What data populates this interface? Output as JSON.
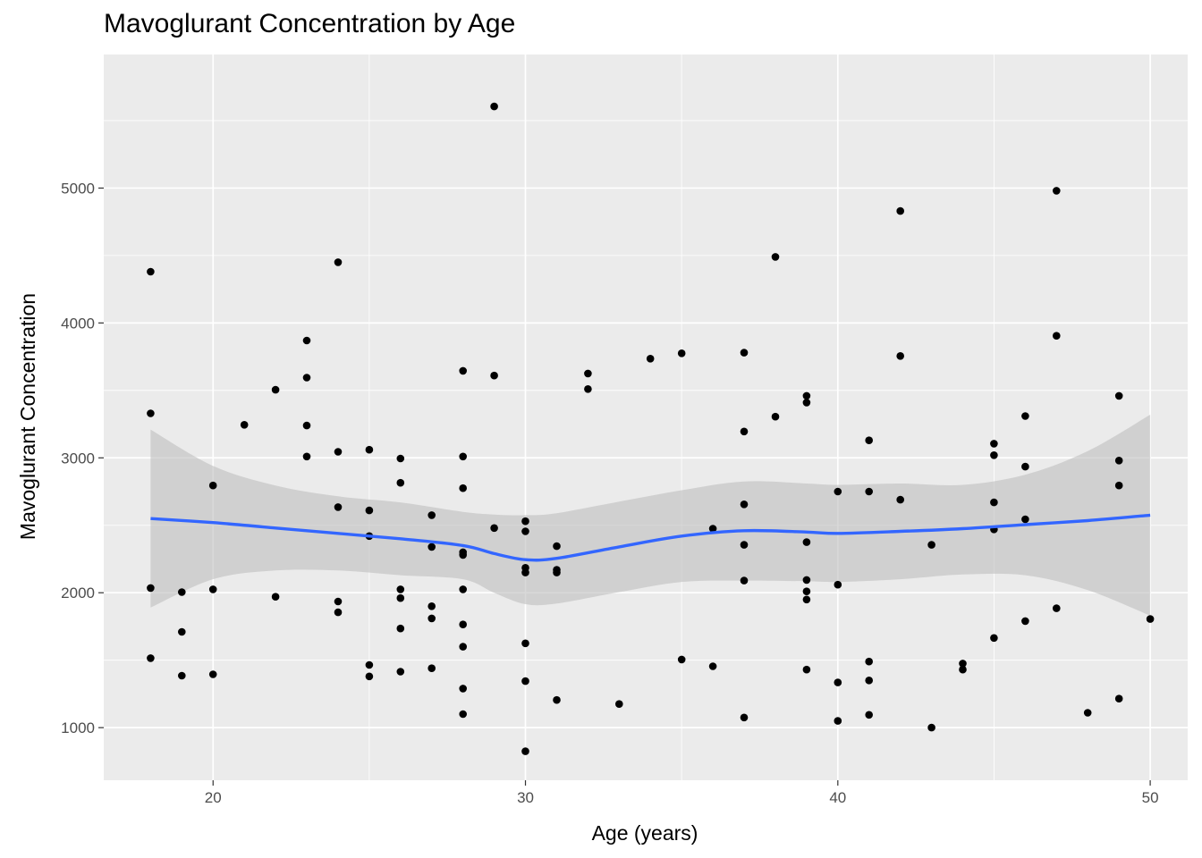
{
  "chart_data": {
    "type": "scatter",
    "title": "Mavoglurant Concentration by Age",
    "xlabel": "Age (years)",
    "ylabel": "Mavoglurant Concentration",
    "xlim": [
      16.5,
      51.2
    ],
    "ylim": [
      610,
      5990
    ],
    "x_ticks": [
      20,
      30,
      40,
      50
    ],
    "x_tick_labels": [
      "20",
      "30",
      "40",
      "50"
    ],
    "y_ticks": [
      1000,
      2000,
      3000,
      4000,
      5000
    ],
    "y_tick_labels": [
      "1000",
      "2000",
      "3000",
      "4000",
      "5000"
    ],
    "grid": true,
    "colors": {
      "panel": "#ebebeb",
      "grid": "#ffffff",
      "points": "#000000",
      "smooth_line": "#3366ff",
      "ribbon": "#bebebe"
    },
    "points": [
      {
        "x": 18,
        "y": 4380
      },
      {
        "x": 18,
        "y": 3330
      },
      {
        "x": 18,
        "y": 2035
      },
      {
        "x": 18,
        "y": 1515
      },
      {
        "x": 19,
        "y": 2005
      },
      {
        "x": 19,
        "y": 1710
      },
      {
        "x": 19,
        "y": 1385
      },
      {
        "x": 20,
        "y": 2795
      },
      {
        "x": 20,
        "y": 2025
      },
      {
        "x": 20,
        "y": 1395
      },
      {
        "x": 21,
        "y": 3245
      },
      {
        "x": 22,
        "y": 3505
      },
      {
        "x": 22,
        "y": 1970
      },
      {
        "x": 23,
        "y": 3870
      },
      {
        "x": 23,
        "y": 3595
      },
      {
        "x": 23,
        "y": 3240
      },
      {
        "x": 23,
        "y": 3010
      },
      {
        "x": 24,
        "y": 4450
      },
      {
        "x": 24,
        "y": 3045
      },
      {
        "x": 24,
        "y": 2635
      },
      {
        "x": 24,
        "y": 1935
      },
      {
        "x": 24,
        "y": 1855
      },
      {
        "x": 25,
        "y": 3060
      },
      {
        "x": 25,
        "y": 2610
      },
      {
        "x": 25,
        "y": 2420
      },
      {
        "x": 25,
        "y": 1465
      },
      {
        "x": 25,
        "y": 1380
      },
      {
        "x": 26,
        "y": 2995
      },
      {
        "x": 26,
        "y": 2815
      },
      {
        "x": 26,
        "y": 2025
      },
      {
        "x": 26,
        "y": 1960
      },
      {
        "x": 26,
        "y": 1735
      },
      {
        "x": 26,
        "y": 1415
      },
      {
        "x": 27,
        "y": 2575
      },
      {
        "x": 27,
        "y": 2340
      },
      {
        "x": 27,
        "y": 1900
      },
      {
        "x": 27,
        "y": 1810
      },
      {
        "x": 27,
        "y": 1440
      },
      {
        "x": 28,
        "y": 3645
      },
      {
        "x": 28,
        "y": 3010
      },
      {
        "x": 28,
        "y": 2775
      },
      {
        "x": 28,
        "y": 2300
      },
      {
        "x": 28,
        "y": 2280
      },
      {
        "x": 28,
        "y": 2025
      },
      {
        "x": 28,
        "y": 1765
      },
      {
        "x": 28,
        "y": 1600
      },
      {
        "x": 28,
        "y": 1290
      },
      {
        "x": 28,
        "y": 1100
      },
      {
        "x": 29,
        "y": 5605
      },
      {
        "x": 29,
        "y": 3610
      },
      {
        "x": 29,
        "y": 2480
      },
      {
        "x": 30,
        "y": 2530
      },
      {
        "x": 30,
        "y": 2455
      },
      {
        "x": 30,
        "y": 2185
      },
      {
        "x": 30,
        "y": 2150
      },
      {
        "x": 30,
        "y": 1625
      },
      {
        "x": 30,
        "y": 1345
      },
      {
        "x": 30,
        "y": 825
      },
      {
        "x": 31,
        "y": 2345
      },
      {
        "x": 31,
        "y": 2170
      },
      {
        "x": 31,
        "y": 2150
      },
      {
        "x": 31,
        "y": 1205
      },
      {
        "x": 32,
        "y": 3625
      },
      {
        "x": 32,
        "y": 3510
      },
      {
        "x": 33,
        "y": 1175
      },
      {
        "x": 34,
        "y": 3735
      },
      {
        "x": 35,
        "y": 3775
      },
      {
        "x": 35,
        "y": 1505
      },
      {
        "x": 36,
        "y": 2475
      },
      {
        "x": 36,
        "y": 1455
      },
      {
        "x": 37,
        "y": 3780
      },
      {
        "x": 37,
        "y": 3195
      },
      {
        "x": 37,
        "y": 2655
      },
      {
        "x": 37,
        "y": 2355
      },
      {
        "x": 37,
        "y": 2090
      },
      {
        "x": 37,
        "y": 1075
      },
      {
        "x": 38,
        "y": 4490
      },
      {
        "x": 38,
        "y": 3305
      },
      {
        "x": 39,
        "y": 3460
      },
      {
        "x": 39,
        "y": 3410
      },
      {
        "x": 39,
        "y": 2375
      },
      {
        "x": 39,
        "y": 2095
      },
      {
        "x": 39,
        "y": 2010
      },
      {
        "x": 39,
        "y": 1950
      },
      {
        "x": 39,
        "y": 1430
      },
      {
        "x": 40,
        "y": 2750
      },
      {
        "x": 40,
        "y": 2060
      },
      {
        "x": 40,
        "y": 1335
      },
      {
        "x": 40,
        "y": 1050
      },
      {
        "x": 41,
        "y": 3130
      },
      {
        "x": 41,
        "y": 2750
      },
      {
        "x": 41,
        "y": 1490
      },
      {
        "x": 41,
        "y": 1350
      },
      {
        "x": 41,
        "y": 1095
      },
      {
        "x": 42,
        "y": 4830
      },
      {
        "x": 42,
        "y": 3755
      },
      {
        "x": 42,
        "y": 2690
      },
      {
        "x": 43,
        "y": 2355
      },
      {
        "x": 43,
        "y": 1000
      },
      {
        "x": 44,
        "y": 1475
      },
      {
        "x": 44,
        "y": 1430
      },
      {
        "x": 45,
        "y": 3105
      },
      {
        "x": 45,
        "y": 3020
      },
      {
        "x": 45,
        "y": 2670
      },
      {
        "x": 45,
        "y": 2470
      },
      {
        "x": 45,
        "y": 1665
      },
      {
        "x": 46,
        "y": 3310
      },
      {
        "x": 46,
        "y": 2935
      },
      {
        "x": 46,
        "y": 2545
      },
      {
        "x": 46,
        "y": 1790
      },
      {
        "x": 47,
        "y": 4980
      },
      {
        "x": 47,
        "y": 3905
      },
      {
        "x": 47,
        "y": 1885
      },
      {
        "x": 48,
        "y": 1110
      },
      {
        "x": 49,
        "y": 3460
      },
      {
        "x": 49,
        "y": 2980
      },
      {
        "x": 49,
        "y": 2795
      },
      {
        "x": 49,
        "y": 1215
      },
      {
        "x": 50,
        "y": 1805
      }
    ],
    "smooth": {
      "x": [
        18,
        20,
        22,
        24,
        26,
        28,
        29,
        30,
        31,
        33,
        35,
        37,
        39,
        40,
        42,
        44,
        46,
        48,
        50
      ],
      "y": [
        2550,
        2520,
        2480,
        2440,
        2400,
        2350,
        2290,
        2245,
        2255,
        2340,
        2420,
        2460,
        2450,
        2440,
        2455,
        2475,
        2505,
        2535,
        2575
      ],
      "lower": [
        1890,
        2100,
        2165,
        2165,
        2130,
        2100,
        2000,
        1915,
        1920,
        2005,
        2080,
        2090,
        2085,
        2080,
        2100,
        2135,
        2130,
        2020,
        1830
      ],
      "upper": [
        3210,
        2940,
        2795,
        2715,
        2670,
        2600,
        2580,
        2575,
        2590,
        2675,
        2760,
        2825,
        2810,
        2800,
        2810,
        2800,
        2875,
        3050,
        3320
      ]
    }
  }
}
